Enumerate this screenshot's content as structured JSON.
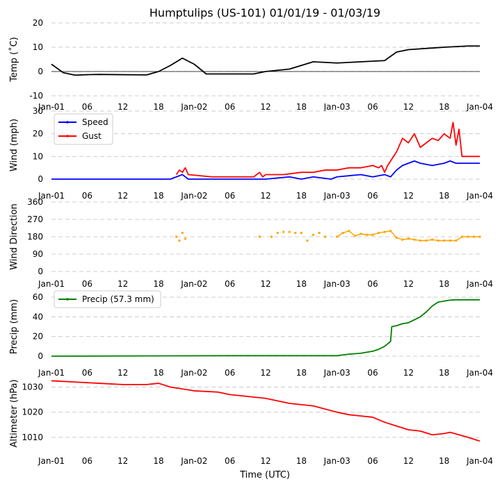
{
  "title": "Humptulips (US-101) 01/01/19 - 01/03/19",
  "xlabel": "Time (UTC)",
  "x_ticks": [
    "Jan-01",
    "06",
    "12",
    "18",
    "Jan-02",
    "06",
    "12",
    "18",
    "Jan-03",
    "06",
    "12",
    "18",
    "Jan-04"
  ],
  "chart_data": [
    {
      "type": "line",
      "ylabel": "Temp ($^\\circ$C)",
      "ylabel_display": "Temp (˚C)",
      "ylim": [
        -10,
        20
      ],
      "yticks": [
        "-10",
        "0",
        "10",
        "20"
      ],
      "zero_line": true,
      "series": [
        {
          "name": "Temp",
          "color": "#000000",
          "x": [
            0,
            2,
            4,
            6,
            8,
            12,
            16,
            18,
            20,
            22,
            24,
            26,
            30,
            34,
            36,
            40,
            44,
            48,
            52,
            56,
            58,
            60,
            66,
            70,
            72
          ],
          "values": [
            3,
            -0.5,
            -1.5,
            -1.3,
            -1.2,
            -1.3,
            -1.4,
            0,
            2.5,
            5.5,
            3,
            -1,
            -1,
            -1,
            0,
            1,
            4,
            3.5,
            4,
            4.5,
            8,
            9,
            10,
            10.5,
            10.5
          ]
        }
      ]
    },
    {
      "type": "line",
      "ylabel": "Wind (mph)",
      "ylim": [
        0,
        30
      ],
      "yticks": [
        "0",
        "10",
        "20",
        "30"
      ],
      "legend": [
        {
          "name": "Speed",
          "color": "#0000ff"
        },
        {
          "name": "Gust",
          "color": "#ff0000"
        }
      ],
      "series": [
        {
          "name": "Speed",
          "color": "#0000ff",
          "x": [
            0,
            20,
            21,
            22,
            23,
            36,
            40,
            42,
            44,
            47,
            48,
            52,
            54,
            56,
            57,
            58,
            59,
            60,
            61,
            62,
            64,
            66,
            67,
            68,
            69,
            72
          ],
          "values": [
            0,
            0,
            1,
            2,
            0,
            0,
            1,
            0,
            1,
            0,
            1,
            2,
            1,
            2,
            1,
            4,
            6,
            7,
            8,
            7,
            6,
            7,
            8,
            7,
            7,
            7
          ]
        },
        {
          "name": "Gust",
          "color": "#ff0000",
          "x": [
            21,
            21.5,
            22,
            22.5,
            23,
            27,
            30,
            34,
            35,
            35.5,
            36,
            39,
            42,
            44,
            46,
            48,
            50,
            52,
            54,
            55,
            55.5,
            56,
            56.5,
            57,
            58,
            59,
            60,
            61,
            62,
            63,
            64,
            65,
            66,
            67,
            67.5,
            68,
            68.5,
            69,
            72
          ],
          "values": [
            2,
            4,
            3,
            5,
            2,
            1,
            1,
            1,
            3,
            1,
            2,
            2,
            3,
            3,
            4,
            4,
            5,
            5,
            6,
            5,
            6,
            3,
            6,
            8,
            12,
            18,
            16,
            20,
            14,
            16,
            18,
            17,
            20,
            18,
            25,
            15,
            22,
            10,
            10
          ]
        }
      ]
    },
    {
      "type": "scatter",
      "ylabel": "Wind Direction",
      "ylim": [
        0,
        360
      ],
      "yticks": [
        "0",
        "90",
        "180",
        "270",
        "360"
      ],
      "series": [
        {
          "name": "Wind Direction",
          "color": "#ffa500",
          "x": [
            21,
            21.5,
            22,
            22.5,
            35,
            37,
            38,
            39,
            40,
            41,
            42,
            43,
            44,
            45,
            46,
            48,
            49,
            50,
            51,
            52,
            53,
            54,
            55,
            56,
            57,
            58,
            59,
            60,
            61,
            62,
            63,
            64,
            65,
            66,
            67,
            68,
            69,
            70,
            71,
            72
          ],
          "values": [
            180,
            160,
            200,
            170,
            180,
            180,
            200,
            205,
            205,
            200,
            200,
            160,
            190,
            200,
            180,
            180,
            200,
            210,
            185,
            195,
            190,
            190,
            200,
            205,
            210,
            175,
            165,
            170,
            165,
            160,
            160,
            165,
            160,
            160,
            160,
            160,
            180,
            180,
            180,
            180
          ]
        }
      ]
    },
    {
      "type": "line",
      "ylabel": "Precip (mm)",
      "ylim": [
        0,
        60
      ],
      "yticks": [
        "0",
        "20",
        "40",
        "60"
      ],
      "legend": [
        {
          "name": "Precip (57.3 mm)",
          "color": "#008000"
        }
      ],
      "series": [
        {
          "name": "Precip (57.3 mm)",
          "color": "#008000",
          "x": [
            0,
            31,
            48,
            50,
            52,
            54,
            55,
            56,
            57,
            57.2,
            58,
            59,
            60,
            62,
            63,
            64,
            65,
            66,
            67,
            68,
            72
          ],
          "values": [
            0,
            0.5,
            0.5,
            2,
            3,
            5,
            7,
            10,
            15,
            30,
            31,
            33,
            34,
            40,
            45,
            51,
            55,
            56,
            57,
            57.3,
            57.3
          ]
        }
      ]
    },
    {
      "type": "line",
      "ylabel": "Altimeter (hPa)",
      "ylim": [
        1005,
        1034
      ],
      "yticks": [
        "1010",
        "1020",
        "1030"
      ],
      "series": [
        {
          "name": "Altimeter",
          "color": "#ff0000",
          "x": [
            0,
            4,
            8,
            12,
            16,
            18,
            20,
            24,
            28,
            30,
            32,
            36,
            40,
            44,
            48,
            50,
            54,
            56,
            58,
            60,
            62,
            64,
            66,
            67,
            70,
            72
          ],
          "values": [
            1032.5,
            1032,
            1031.5,
            1031,
            1031,
            1031.5,
            1030,
            1028.5,
            1028,
            1027,
            1026.5,
            1025.5,
            1023.5,
            1022.5,
            1020,
            1019,
            1018,
            1016,
            1014.5,
            1013,
            1012.5,
            1011,
            1011.5,
            1012,
            1010,
            1008.5
          ]
        }
      ]
    }
  ]
}
